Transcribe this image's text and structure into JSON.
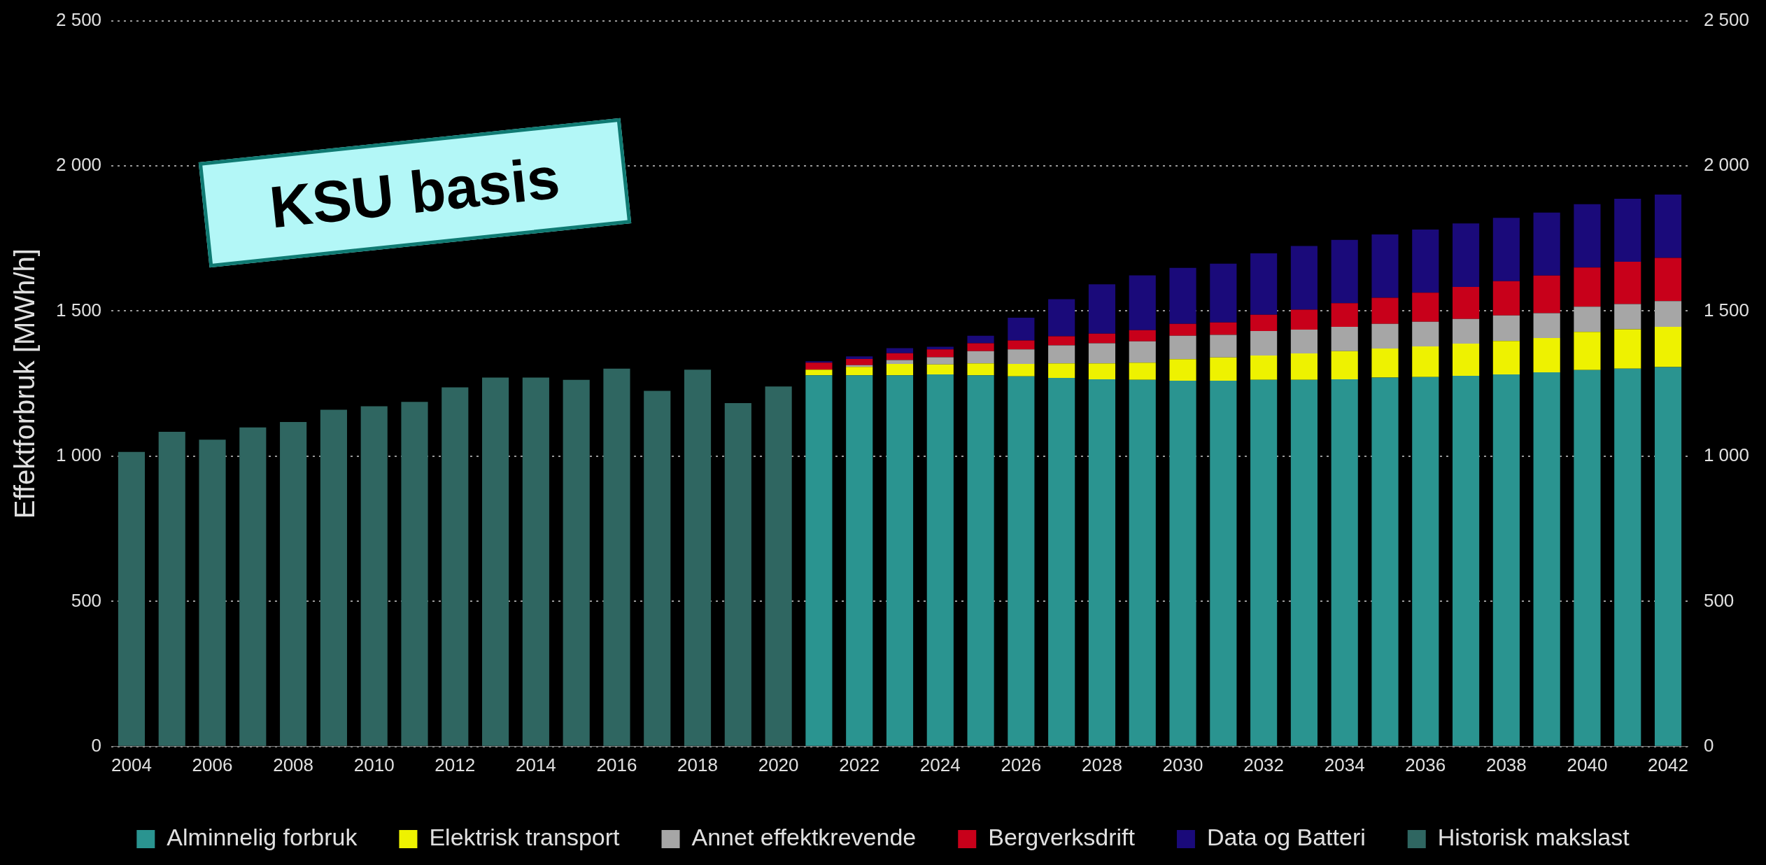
{
  "chart_data": {
    "type": "bar",
    "stacked": true,
    "ylabel": "Effektforbruk [MWh/h]",
    "annotations": [
      "KSU basis"
    ],
    "categories": [
      "2004",
      null,
      "2006",
      null,
      "2008",
      null,
      "2010",
      null,
      "2012",
      null,
      "2014",
      null,
      "2016",
      null,
      "2018",
      null,
      "2020",
      null,
      "2022",
      null,
      "2024",
      null,
      "2026",
      null,
      "2028",
      null,
      "2030",
      null,
      "2032",
      null,
      "2034",
      null,
      "2036",
      null,
      "2038",
      null,
      "2040",
      null,
      "2042"
    ],
    "series": [
      {
        "name": "Alminnelig forbruk",
        "color": "#2a9490",
        "values": [
          null,
          null,
          null,
          null,
          null,
          null,
          null,
          null,
          null,
          null,
          null,
          null,
          null,
          null,
          null,
          null,
          null,
          1279,
          1279,
          1279,
          1282,
          1279,
          1275,
          1270,
          1265,
          1263,
          1260,
          1260,
          1263,
          1263,
          1265,
          1271,
          1273,
          1277,
          1282,
          1289,
          1297,
          1302,
          1307
        ]
      },
      {
        "name": "Elektrisk transport",
        "color": "#eef200",
        "values": [
          null,
          null,
          null,
          null,
          null,
          null,
          null,
          null,
          null,
          null,
          null,
          null,
          null,
          null,
          null,
          null,
          null,
          19,
          29,
          39,
          34,
          41,
          43,
          50,
          55,
          59,
          74,
          80,
          84,
          91,
          97,
          100,
          105,
          111,
          115,
          118,
          131,
          135,
          139
        ]
      },
      {
        "name": "Annet effektkrevende",
        "color": "#a6a6a6",
        "values": [
          null,
          null,
          null,
          null,
          null,
          null,
          null,
          null,
          null,
          null,
          null,
          null,
          null,
          null,
          null,
          null,
          null,
          0,
          6,
          13,
          25,
          42,
          50,
          62,
          69,
          74,
          81,
          78,
          84,
          82,
          84,
          85,
          85,
          85,
          88,
          86,
          87,
          87,
          88
        ]
      },
      {
        "name": "Bergverksdrift",
        "color": "#c8001a",
        "values": [
          null,
          null,
          null,
          null,
          null,
          null,
          null,
          null,
          null,
          null,
          null,
          null,
          null,
          null,
          null,
          null,
          null,
          24,
          21,
          24,
          27,
          27,
          31,
          31,
          33,
          38,
          41,
          43,
          56,
          69,
          81,
          90,
          100,
          110,
          118,
          129,
          135,
          146,
          149
        ]
      },
      {
        "name": "Data og Batteri",
        "color": "#1a0a7a",
        "values": [
          null,
          null,
          null,
          null,
          null,
          null,
          null,
          null,
          null,
          null,
          null,
          null,
          null,
          null,
          null,
          null,
          null,
          5,
          9,
          17,
          9,
          26,
          78,
          128,
          170,
          189,
          193,
          202,
          212,
          219,
          218,
          218,
          218,
          219,
          218,
          217,
          218,
          217,
          218
        ]
      },
      {
        "name": "Historisk makslast",
        "color": "#2f6661",
        "values": [
          1015,
          1084,
          1057,
          1099,
          1118,
          1160,
          1172,
          1187,
          1237,
          1271,
          1271,
          1263,
          1302,
          1225,
          1298,
          1183,
          1240,
          null,
          null,
          null,
          null,
          null,
          null,
          null,
          null,
          null,
          null,
          null,
          null,
          null,
          null,
          null,
          null,
          null,
          null,
          null,
          null,
          null,
          null
        ]
      }
    ],
    "ylim": [
      0,
      2500
    ],
    "yticks": [
      0,
      500,
      {
        "value": 1000,
        "label": "1 000"
      },
      {
        "value": 1500,
        "label": "1 500"
      },
      {
        "value": 2000,
        "label": "2 000"
      },
      {
        "value": 2500,
        "label": "2 500"
      }
    ],
    "y2lim": [
      0,
      2500
    ],
    "y2ticks": [
      0,
      500,
      {
        "value": 1000,
        "label": "1 000"
      },
      {
        "value": 1500,
        "label": "1 500"
      },
      {
        "value": 2000,
        "label": "2 000"
      },
      {
        "value": 2500,
        "label": "2 500"
      }
    ],
    "grid": "y",
    "legend": "bottom"
  }
}
